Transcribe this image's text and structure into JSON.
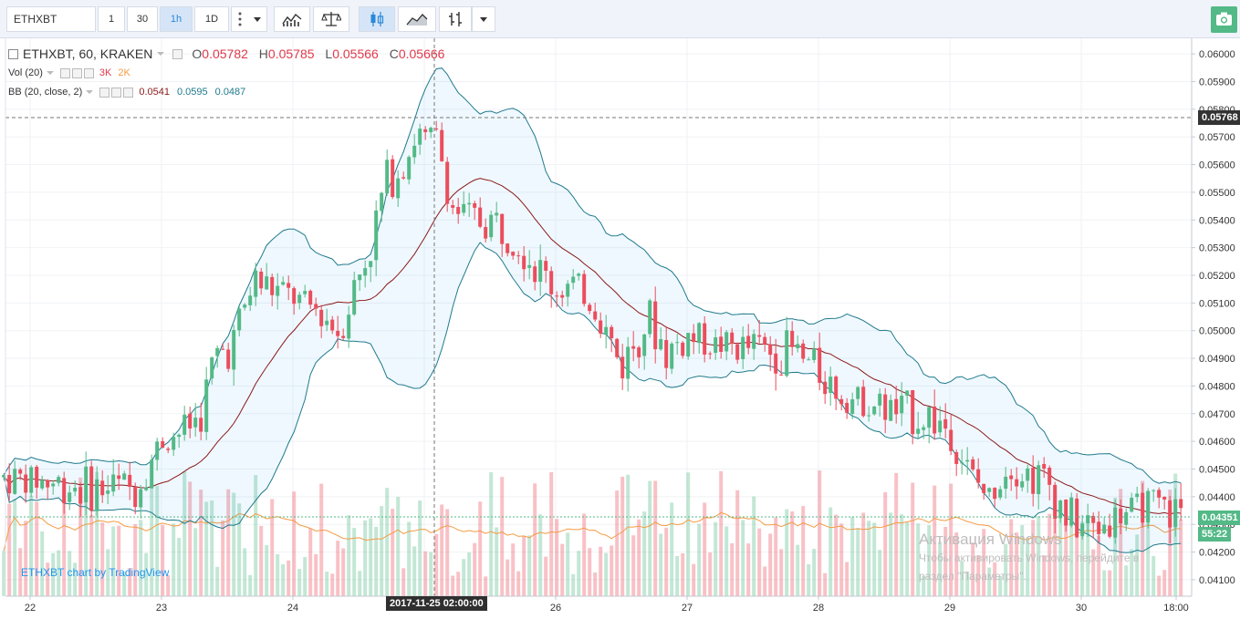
{
  "toolbar": {
    "symbol": "ETHXBT",
    "intervals": [
      "1",
      "30",
      "1h",
      "1D"
    ],
    "active_interval": "1h"
  },
  "legend": {
    "title": "ETHXBT, 60, KRAKEN",
    "open_label": "O",
    "open": "0.05782",
    "high_label": "H",
    "high": "0.05785",
    "low_label": "L",
    "low": "0.05566",
    "close_label": "C",
    "close": "0.05666",
    "vol_label": "Vol (20)",
    "vol_1": "3K",
    "vol_2": "2K",
    "bb_label": "BB (20, close, 2)",
    "bb_mid": "0.0541",
    "bb_upper": "0.0595",
    "bb_lower": "0.0487"
  },
  "price_axis": {
    "ticks": [
      "0.06000",
      "0.05900",
      "0.05800",
      "0.05700",
      "0.05600",
      "0.05500",
      "0.05400",
      "0.05300",
      "0.05200",
      "0.05100",
      "0.05000",
      "0.04900",
      "0.04800",
      "0.04700",
      "0.04600",
      "0.04500",
      "0.04400",
      "0.04300",
      "0.04200",
      "0.04100"
    ],
    "crosshair_price": "0.05768",
    "last_price": "0.04351",
    "countdown": "55:22",
    "hidden_tick": "0"
  },
  "time_axis": {
    "ticks": [
      "22",
      "23",
      "24",
      "25",
      "26",
      "27",
      "28",
      "29",
      "30",
      "18:00"
    ],
    "crosshair_time": "2017-11-25 02:00:00"
  },
  "watermark": "ETHXBT chart by TradingView",
  "activation": {
    "line1": "Активация Windows",
    "line2": "Чтобы активировать Windows, перейдите в",
    "line3": "раздел \"Параметры\"."
  },
  "colors": {
    "up": "#53b987",
    "down": "#eb4d5c",
    "bb_band": "#1f7a8c",
    "bb_mid": "#8b1a1a",
    "vol_ma": "#f59b42",
    "accent": "#2b88d8"
  },
  "chart_data": {
    "type": "candlestick",
    "interval": "60",
    "exchange": "KRAKEN",
    "ylim": [
      0.0408,
      0.0603
    ],
    "xlim_days": [
      21.8,
      30.78
    ],
    "anchors": [
      [
        21.8,
        0.0447
      ],
      [
        22.2,
        0.0445
      ],
      [
        22.5,
        0.0443
      ],
      [
        22.8,
        0.0443
      ],
      [
        23.0,
        0.046
      ],
      [
        23.2,
        0.0465
      ],
      [
        23.3,
        0.047
      ],
      [
        23.4,
        0.049
      ],
      [
        23.55,
        0.0496
      ],
      [
        23.7,
        0.0518
      ],
      [
        23.85,
        0.0515
      ],
      [
        24.0,
        0.0512
      ],
      [
        24.2,
        0.0507
      ],
      [
        24.35,
        0.05
      ],
      [
        24.5,
        0.052
      ],
      [
        24.6,
        0.0532
      ],
      [
        24.7,
        0.0553
      ],
      [
        24.85,
        0.0562
      ],
      [
        24.95,
        0.0572
      ],
      [
        25.0,
        0.0568
      ],
      [
        25.1,
        0.057
      ],
      [
        25.2,
        0.0545
      ],
      [
        25.35,
        0.054
      ],
      [
        25.5,
        0.054
      ],
      [
        25.7,
        0.0535
      ],
      [
        25.85,
        0.0523
      ],
      [
        26.0,
        0.0515
      ],
      [
        26.15,
        0.0517
      ],
      [
        26.3,
        0.0509
      ],
      [
        26.5,
        0.0487
      ],
      [
        26.7,
        0.0505
      ],
      [
        26.85,
        0.0492
      ],
      [
        27.0,
        0.0498
      ],
      [
        27.2,
        0.0495
      ],
      [
        27.4,
        0.0494
      ],
      [
        27.6,
        0.0493
      ],
      [
        27.8,
        0.0492
      ],
      [
        28.0,
        0.0485
      ],
      [
        28.2,
        0.0476
      ],
      [
        28.4,
        0.0474
      ],
      [
        28.6,
        0.047
      ],
      [
        28.8,
        0.047
      ],
      [
        29.0,
        0.0465
      ],
      [
        29.15,
        0.0448
      ],
      [
        29.3,
        0.044
      ],
      [
        29.45,
        0.0452
      ],
      [
        29.6,
        0.0448
      ],
      [
        29.75,
        0.0445
      ],
      [
        29.9,
        0.0432
      ],
      [
        30.1,
        0.0428
      ],
      [
        30.3,
        0.0434
      ],
      [
        30.5,
        0.0437
      ],
      [
        30.6,
        0.0436
      ],
      [
        30.65,
        0.0435
      ]
    ]
  }
}
